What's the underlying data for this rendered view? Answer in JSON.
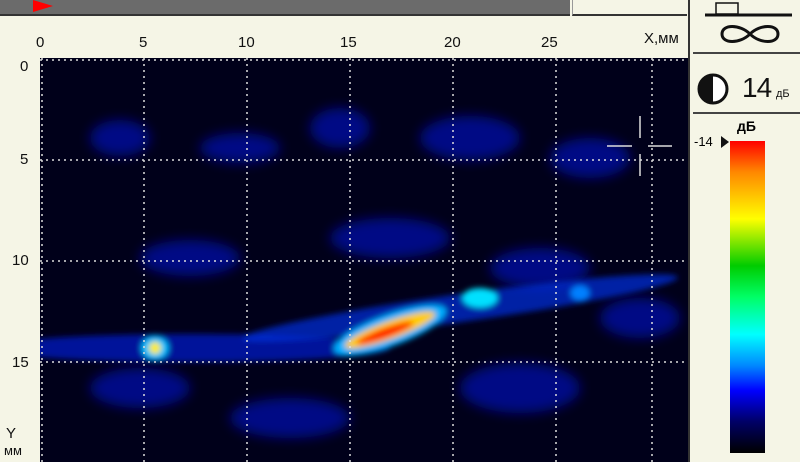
{
  "header": {
    "progress_marker_color": "#ff0000"
  },
  "axes": {
    "x_label": "X,мм",
    "y_label_1": "Y",
    "y_label_2": "мм",
    "x_ticks": [
      "0",
      "5",
      "10",
      "15",
      "20",
      "25"
    ],
    "y_ticks": [
      "0",
      "5",
      "10",
      "15"
    ]
  },
  "panel": {
    "probe_icon": "probe-infinity-icon",
    "contrast_icon": "half-circle-contrast-icon",
    "gain_value": "14",
    "gain_unit": "дБ",
    "colorbar_unit": "дБ",
    "colorbar_max": "-14"
  }
}
